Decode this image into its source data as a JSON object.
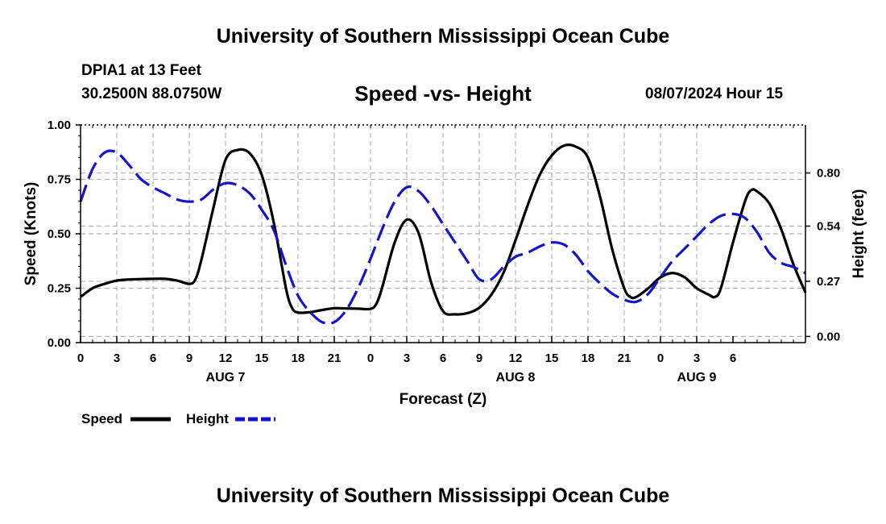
{
  "header": {
    "main_title": "University of Southern Mississippi Ocean Cube",
    "station_name": "DPIA1 at 13 Feet",
    "station_coords": "30.2500N  88.0750W",
    "chart_title": "Speed -vs- Height",
    "date_hour": "08/07/2024 Hour 15"
  },
  "footer": {
    "title": "University of Southern Mississippi Ocean Cube"
  },
  "chart_data": {
    "type": "line",
    "title": "Speed -vs- Height",
    "xlabel": "Forecast (Z)",
    "ylabel_left": "Speed (Knots)",
    "ylabel_right": "Height (feet)",
    "x_range": [
      0,
      60
    ],
    "y_left_range": [
      0,
      1
    ],
    "y_left_ticks": [
      0,
      0.25,
      0.5,
      0.75,
      1.0
    ],
    "y_left_tick_labels": [
      "0.00",
      "0.25",
      "0.50",
      "0.75",
      "1.00"
    ],
    "y_right_ticks": [
      0.0,
      0.27,
      0.54,
      0.8
    ],
    "y_right_tick_labels": [
      "0.00",
      "0.27",
      "0.54",
      "0.80"
    ],
    "right_axis_map": {
      "height_at_speed_0": -0.03,
      "feet_per_speed_unit": 1.065
    },
    "x_ticks": [
      0,
      3,
      6,
      9,
      12,
      15,
      18,
      21,
      24,
      27,
      30,
      33,
      36,
      39,
      42,
      45,
      48,
      51,
      54
    ],
    "x_tick_labels": [
      "0",
      "3",
      "6",
      "9",
      "12",
      "15",
      "18",
      "21",
      "0",
      "3",
      "6",
      "9",
      "12",
      "15",
      "18",
      "21",
      "0",
      "3",
      "6"
    ],
    "date_labels": [
      {
        "x": 12,
        "label": "AUG 7"
      },
      {
        "x": 36,
        "label": "AUG 8"
      },
      {
        "x": 51,
        "label": "AUG 9"
      }
    ],
    "grid": true,
    "legend_position": "bottom-left",
    "series": [
      {
        "name": "Speed",
        "axis": "left",
        "color": "#000000",
        "dash": "solid",
        "points": [
          [
            0,
            0.21
          ],
          [
            1,
            0.25
          ],
          [
            2,
            0.27
          ],
          [
            3,
            0.285
          ],
          [
            4,
            0.29
          ],
          [
            5,
            0.292
          ],
          [
            6,
            0.293
          ],
          [
            7,
            0.293
          ],
          [
            8,
            0.285
          ],
          [
            9,
            0.27
          ],
          [
            9.5,
            0.29
          ],
          [
            10,
            0.38
          ],
          [
            11,
            0.62
          ],
          [
            12,
            0.84
          ],
          [
            13,
            0.885
          ],
          [
            14,
            0.87
          ],
          [
            15,
            0.77
          ],
          [
            16,
            0.55
          ],
          [
            17,
            0.25
          ],
          [
            17.5,
            0.16
          ],
          [
            18,
            0.138
          ],
          [
            19,
            0.14
          ],
          [
            20,
            0.15
          ],
          [
            21,
            0.158
          ],
          [
            22,
            0.157
          ],
          [
            23,
            0.156
          ],
          [
            24,
            0.155
          ],
          [
            24.5,
            0.18
          ],
          [
            25,
            0.26
          ],
          [
            26,
            0.46
          ],
          [
            27,
            0.565
          ],
          [
            28,
            0.5
          ],
          [
            29,
            0.28
          ],
          [
            30,
            0.145
          ],
          [
            31,
            0.13
          ],
          [
            32,
            0.135
          ],
          [
            33,
            0.16
          ],
          [
            34,
            0.22
          ],
          [
            35,
            0.32
          ],
          [
            36,
            0.47
          ],
          [
            37,
            0.63
          ],
          [
            38,
            0.77
          ],
          [
            39,
            0.86
          ],
          [
            40,
            0.905
          ],
          [
            41,
            0.9
          ],
          [
            42,
            0.85
          ],
          [
            43,
            0.67
          ],
          [
            44,
            0.43
          ],
          [
            45,
            0.25
          ],
          [
            45.5,
            0.21
          ],
          [
            46,
            0.21
          ],
          [
            47,
            0.25
          ],
          [
            48,
            0.3
          ],
          [
            49,
            0.32
          ],
          [
            50,
            0.3
          ],
          [
            51,
            0.25
          ],
          [
            52,
            0.22
          ],
          [
            52.5,
            0.21
          ],
          [
            53,
            0.25
          ],
          [
            54,
            0.46
          ],
          [
            55,
            0.65
          ],
          [
            55.5,
            0.7
          ],
          [
            56,
            0.695
          ],
          [
            57,
            0.64
          ],
          [
            58,
            0.52
          ],
          [
            59,
            0.36
          ],
          [
            60,
            0.23
          ]
        ]
      },
      {
        "name": "Height",
        "axis": "right",
        "color": "#1414cc",
        "dash": "dashed",
        "points": [
          [
            0,
            0.66
          ],
          [
            1,
            0.82
          ],
          [
            2,
            0.9
          ],
          [
            3,
            0.9
          ],
          [
            4,
            0.84
          ],
          [
            5,
            0.77
          ],
          [
            6,
            0.73
          ],
          [
            7,
            0.7
          ],
          [
            8,
            0.67
          ],
          [
            9,
            0.66
          ],
          [
            10,
            0.67
          ],
          [
            11,
            0.72
          ],
          [
            12,
            0.75
          ],
          [
            13,
            0.74
          ],
          [
            14,
            0.7
          ],
          [
            15,
            0.62
          ],
          [
            16,
            0.52
          ],
          [
            17,
            0.35
          ],
          [
            18,
            0.2
          ],
          [
            19,
            0.12
          ],
          [
            20,
            0.07
          ],
          [
            21,
            0.07
          ],
          [
            22,
            0.13
          ],
          [
            23,
            0.24
          ],
          [
            24,
            0.38
          ],
          [
            25,
            0.53
          ],
          [
            26,
            0.66
          ],
          [
            27,
            0.73
          ],
          [
            28,
            0.71
          ],
          [
            29,
            0.64
          ],
          [
            30,
            0.55
          ],
          [
            31,
            0.46
          ],
          [
            32,
            0.37
          ],
          [
            33,
            0.28
          ],
          [
            34,
            0.28
          ],
          [
            35,
            0.34
          ],
          [
            36,
            0.39
          ],
          [
            37,
            0.41
          ],
          [
            38,
            0.44
          ],
          [
            39,
            0.46
          ],
          [
            40,
            0.45
          ],
          [
            41,
            0.4
          ],
          [
            42,
            0.32
          ],
          [
            43,
            0.26
          ],
          [
            44,
            0.21
          ],
          [
            45,
            0.18
          ],
          [
            46,
            0.17
          ],
          [
            47,
            0.21
          ],
          [
            48,
            0.29
          ],
          [
            49,
            0.37
          ],
          [
            50,
            0.43
          ],
          [
            51,
            0.49
          ],
          [
            52,
            0.55
          ],
          [
            53,
            0.59
          ],
          [
            54,
            0.6
          ],
          [
            55,
            0.58
          ],
          [
            56,
            0.51
          ],
          [
            57,
            0.41
          ],
          [
            58,
            0.36
          ],
          [
            59,
            0.34
          ],
          [
            60,
            0.31
          ]
        ]
      }
    ]
  }
}
